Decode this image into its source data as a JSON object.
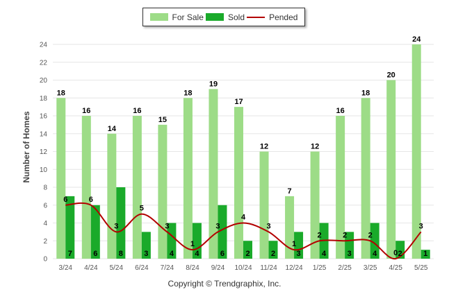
{
  "colors": {
    "for_sale": "#9ddc87",
    "sold": "#1aaa2a",
    "pended": "#b30000",
    "grid": "#e6e6e6"
  },
  "legend": {
    "for_sale": "For Sale",
    "sold": "Sold",
    "pended": "Pended"
  },
  "footer": {
    "copyright": "Copyright © Trendgraphix, Inc."
  },
  "chart_data": {
    "type": "bar",
    "categories": [
      "3/24",
      "4/24",
      "5/24",
      "6/24",
      "7/24",
      "8/24",
      "9/24",
      "10/24",
      "11/24",
      "12/24",
      "1/25",
      "2/25",
      "3/25",
      "4/25",
      "5/25"
    ],
    "ylabel": "Number of Homes",
    "xlabel": "",
    "ylim": [
      0,
      24
    ],
    "yticks": [
      0,
      2,
      4,
      6,
      8,
      10,
      12,
      14,
      16,
      18,
      20,
      22,
      24
    ],
    "grid": true,
    "legend_position": "top-center",
    "series": [
      {
        "name": "For Sale",
        "type": "bar",
        "values": [
          18,
          16,
          14,
          16,
          15,
          18,
          19,
          17,
          12,
          7,
          12,
          16,
          18,
          20,
          24
        ]
      },
      {
        "name": "Sold",
        "type": "bar",
        "values": [
          7,
          6,
          8,
          3,
          4,
          4,
          6,
          2,
          2,
          3,
          4,
          3,
          4,
          2,
          1
        ]
      },
      {
        "name": "Pended",
        "type": "line",
        "values": [
          6,
          6,
          3,
          5,
          3,
          1,
          3,
          4,
          3,
          1,
          2,
          2,
          2,
          0,
          3
        ]
      }
    ]
  }
}
